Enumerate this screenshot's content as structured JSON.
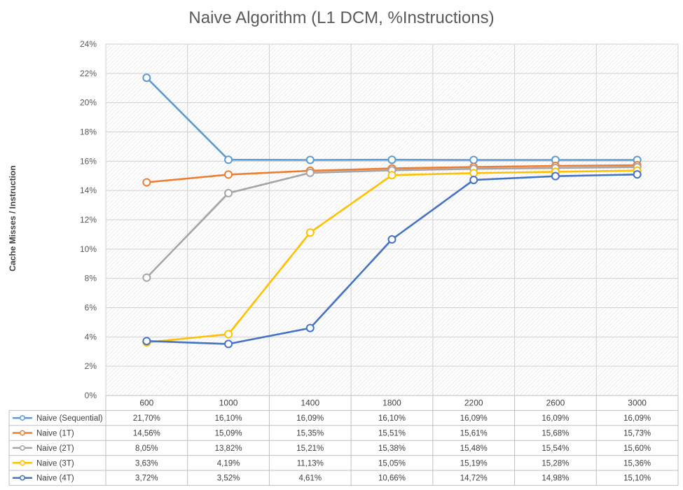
{
  "chart_data": {
    "type": "line",
    "title": "Naive Algorithm (L1 DCM, %Instructions)",
    "ylabel": "Cache Misses / Instruction",
    "xlabel": "",
    "categories": [
      "600",
      "1000",
      "1400",
      "1800",
      "2200",
      "2600",
      "3000"
    ],
    "ylim": [
      0,
      24
    ],
    "yticks": [
      "0%",
      "2%",
      "4%",
      "6%",
      "8%",
      "10%",
      "12%",
      "14%",
      "16%",
      "18%",
      "20%",
      "22%",
      "24%"
    ],
    "grid": true,
    "legend": "data-table",
    "series": [
      {
        "name": "Naive (Sequential)",
        "color": "#5B9BD5",
        "values": [
          21.7,
          16.1,
          16.09,
          16.1,
          16.09,
          16.09,
          16.09
        ],
        "labels": [
          "21,70%",
          "16,10%",
          "16,09%",
          "16,10%",
          "16,09%",
          "16,09%",
          "16,09%"
        ]
      },
      {
        "name": "Naive (1T)",
        "color": "#ED7D31",
        "values": [
          14.56,
          15.09,
          15.35,
          15.51,
          15.61,
          15.68,
          15.73
        ],
        "labels": [
          "14,56%",
          "15,09%",
          "15,35%",
          "15,51%",
          "15,61%",
          "15,68%",
          "15,73%"
        ]
      },
      {
        "name": "Naive (2T)",
        "color": "#A5A5A5",
        "values": [
          8.05,
          13.82,
          15.21,
          15.38,
          15.48,
          15.54,
          15.6
        ],
        "labels": [
          "8,05%",
          "13,82%",
          "15,21%",
          "15,38%",
          "15,48%",
          "15,54%",
          "15,60%"
        ]
      },
      {
        "name": "Naive (3T)",
        "color": "#FFC000",
        "values": [
          3.63,
          4.19,
          11.13,
          15.05,
          15.19,
          15.28,
          15.36
        ],
        "labels": [
          "3,63%",
          "4,19%",
          "11,13%",
          "15,05%",
          "15,19%",
          "15,28%",
          "15,36%"
        ]
      },
      {
        "name": "Naive (4T)",
        "color": "#4472C4",
        "values": [
          3.72,
          3.52,
          4.61,
          10.66,
          14.72,
          14.98,
          15.1
        ],
        "labels": [
          "3,72%",
          "3,52%",
          "4,61%",
          "10,66%",
          "14,72%",
          "14,98%",
          "15,10%"
        ]
      }
    ]
  }
}
